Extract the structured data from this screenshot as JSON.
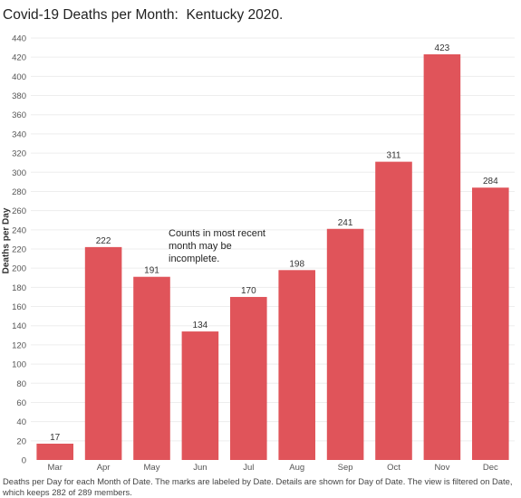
{
  "chart_title": "Covid-19 Deaths per Month:  Kentucky 2020.",
  "annotation": "Counts in most recent month may be incomplete.",
  "footnote": "Deaths per Day for each Month of Date.  The marks are labeled by Date.  Details are shown for Day of Date. The view is filtered on Date, which keeps 282 of 289 members.",
  "colors": {
    "bar": "#e0545a",
    "grid": "#ededed",
    "tick_text": "#555555"
  },
  "chart_data": {
    "type": "bar",
    "title": "Covid-19 Deaths per Month:  Kentucky 2020.",
    "xlabel": "",
    "ylabel": "Deaths per Day",
    "categories": [
      "Mar",
      "Apr",
      "May",
      "Jun",
      "Jul",
      "Aug",
      "Sep",
      "Oct",
      "Nov",
      "Dec"
    ],
    "values": [
      17,
      222,
      191,
      134,
      170,
      198,
      241,
      311,
      423,
      284
    ],
    "ylim": [
      0,
      440
    ],
    "yticks": [
      0,
      20,
      40,
      60,
      80,
      100,
      120,
      140,
      160,
      180,
      200,
      220,
      240,
      260,
      280,
      300,
      320,
      340,
      360,
      380,
      400,
      420,
      440
    ],
    "grid": true,
    "legend": "none"
  }
}
